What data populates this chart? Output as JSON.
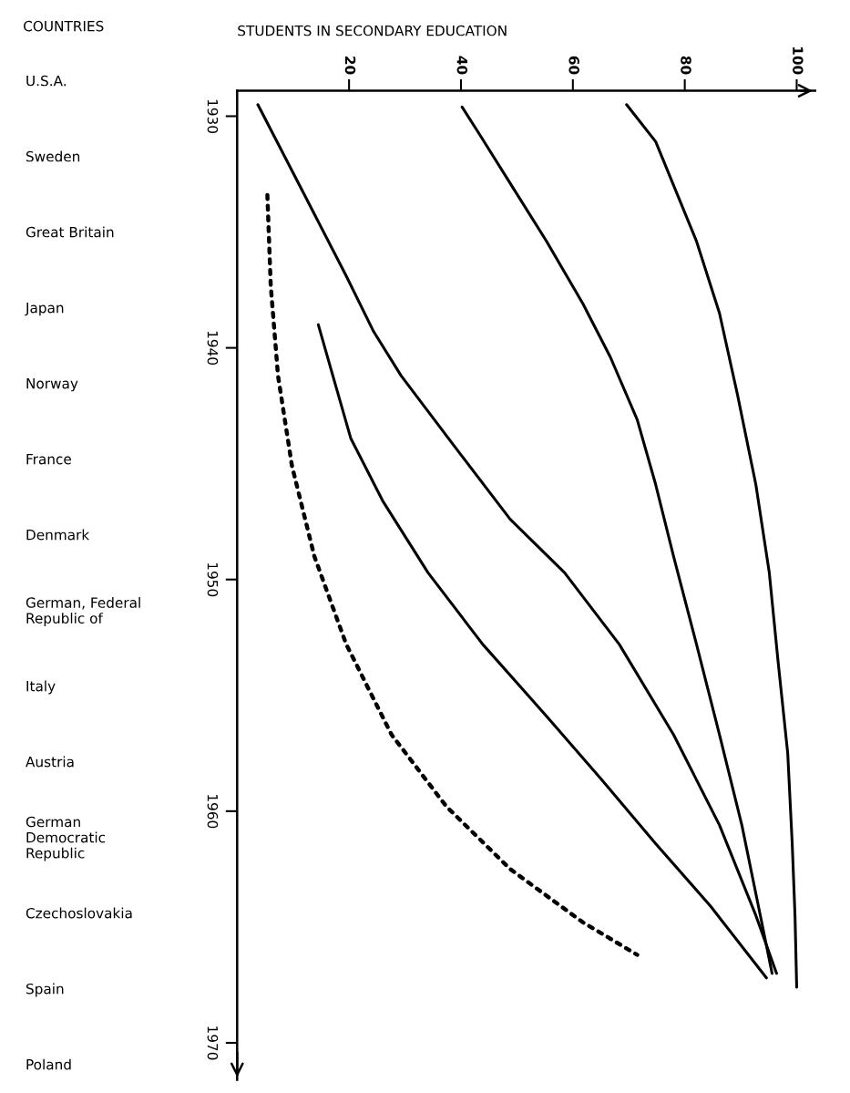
{
  "chart_data": {
    "type": "line",
    "orientation": "horizontal",
    "xlabel": "STUDENTS IN SECONDARY EDUCATION",
    "xlim": [
      0,
      103.3
    ],
    "xticks": [
      20,
      40,
      60,
      80,
      100
    ],
    "ylim": [
      1971.6,
      1928.9
    ],
    "yticks": [
      1930,
      1940,
      1950,
      1960,
      1970
    ],
    "grid": false,
    "legend": false,
    "marker": "none",
    "annotations": [
      "COUNTRIES",
      "U.S.A.",
      "Sweden",
      "Great Britain",
      "Japan",
      "Norway",
      "France",
      "Denmark",
      "German, Federal\nRepublic of",
      "Italy",
      "Austria",
      "German\nDemocratic\nRepublic",
      "Czechoslovakia",
      "Spain",
      "Poland"
    ],
    "series": [
      {
        "color": "#000000",
        "line_style": "solid",
        "x": [
          1929.5,
          1933.1,
          1936.9,
          1939.3,
          1941.2,
          1944.3,
          1947.4,
          1949.7,
          1952.8,
          1956.7,
          1960.6,
          1964.5,
          1967.0
        ],
        "values": [
          3.7,
          11.4,
          19.5,
          24.4,
          29.3,
          39.0,
          48.8,
          58.5,
          68.3,
          78.0,
          86.2,
          92.7,
          96.4
        ]
      },
      {
        "color": "#000000",
        "line_style": "solid",
        "x": [
          1929.6,
          1930.7,
          1932.9,
          1935.4,
          1938.1,
          1940.4,
          1943.1,
          1945.9,
          1949.0,
          1952.8,
          1956.7,
          1960.6,
          1964.5,
          1967.0
        ],
        "values": [
          40.2,
          43.1,
          48.8,
          55.3,
          61.8,
          66.7,
          71.5,
          74.8,
          78.0,
          82.1,
          86.2,
          90.2,
          93.5,
          95.6
        ]
      },
      {
        "color": "#000000",
        "line_style": "solid",
        "x": [
          1929.5,
          1931.1,
          1935.4,
          1938.5,
          1942.0,
          1945.9,
          1949.7,
          1953.6,
          1957.5,
          1961.4,
          1964.5,
          1967.6
        ],
        "values": [
          69.6,
          74.8,
          82.1,
          86.2,
          89.4,
          92.7,
          95.1,
          96.7,
          98.4,
          99.2,
          99.7,
          100.0
        ]
      },
      {
        "color": "#000000",
        "line_style": "solid",
        "x": [
          1939.0,
          1941.2,
          1943.9,
          1946.6,
          1949.7,
          1952.8,
          1955.9,
          1958.6,
          1961.4,
          1964.1,
          1967.2
        ],
        "values": [
          14.5,
          17.1,
          20.3,
          26.0,
          34.1,
          43.9,
          55.3,
          65.0,
          74.8,
          84.6,
          94.6
        ]
      },
      {
        "color": "#000000",
        "line_style": "dotted",
        "x": [
          1933.4,
          1937.3,
          1941.2,
          1945.1,
          1949.0,
          1952.8,
          1956.7,
          1959.8,
          1962.5,
          1964.8,
          1966.2
        ],
        "values": [
          5.4,
          6.0,
          7.3,
          9.8,
          13.8,
          19.5,
          27.6,
          37.4,
          48.8,
          61.8,
          71.5
        ]
      }
    ]
  }
}
